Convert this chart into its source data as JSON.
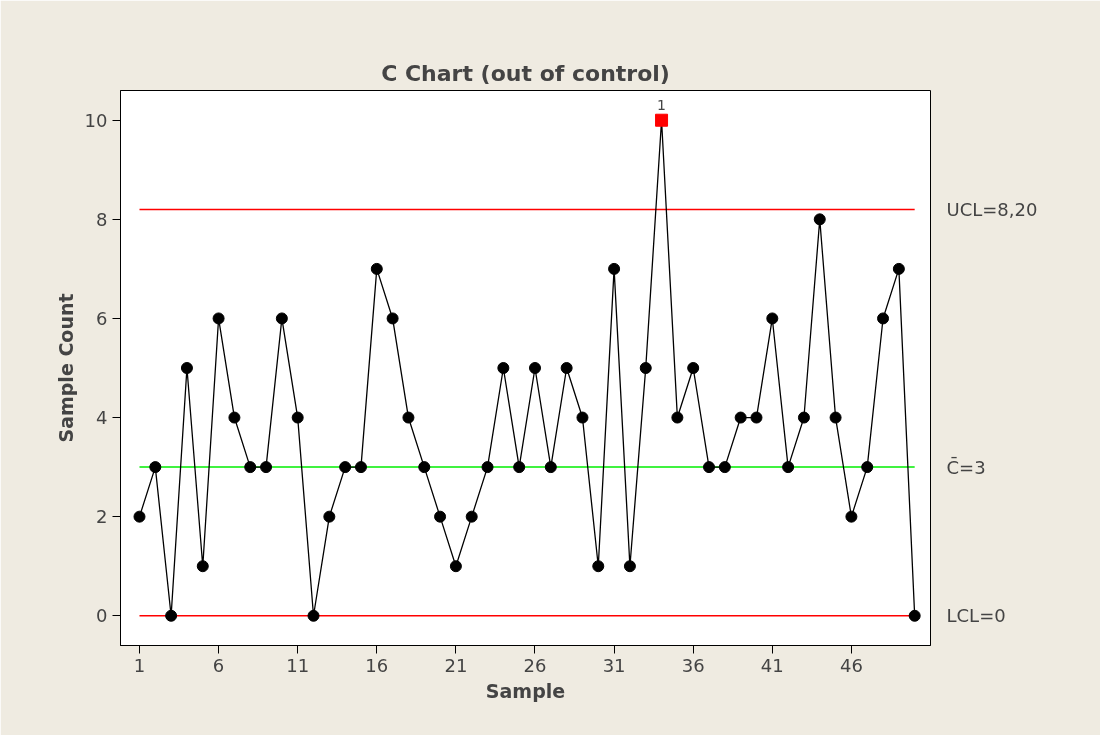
{
  "chart_data": {
    "type": "line",
    "title": "C Chart (out of control)",
    "xlabel": "Sample",
    "ylabel": "Sample Count",
    "xlim": [
      -0.2,
      51
    ],
    "ylim": [
      -0.6,
      10.6
    ],
    "xticks": [
      1,
      6,
      11,
      16,
      21,
      26,
      31,
      36,
      41,
      46
    ],
    "yticks": [
      0,
      2,
      4,
      6,
      8,
      10
    ],
    "grid": false,
    "series": [
      {
        "color": "#000000",
        "marker": "none",
        "x": [
          1,
          2,
          3,
          4,
          5,
          6,
          7,
          8,
          9,
          10,
          11,
          12,
          13,
          14,
          15,
          16,
          17,
          18,
          19,
          20,
          21,
          22,
          23,
          24,
          25,
          26,
          27,
          28,
          29,
          30,
          31,
          32,
          33,
          34,
          35,
          36,
          37,
          38,
          39,
          40,
          41,
          42,
          43,
          44,
          45,
          46,
          47,
          48,
          49,
          50
        ],
        "values": [
          2,
          3,
          0,
          5,
          1,
          6,
          4,
          3,
          3,
          6,
          4,
          0,
          2,
          3,
          3,
          7,
          6,
          4,
          3,
          2,
          1,
          2,
          3,
          5,
          3,
          5,
          3,
          5,
          4,
          1,
          7,
          1,
          5,
          10,
          4,
          5,
          3,
          3,
          4,
          4,
          6,
          3,
          4,
          8,
          4,
          2,
          3,
          6,
          7,
          0
        ]
      },
      {
        "type": "scatter",
        "color": "#000000",
        "marker": "circle",
        "x": [
          1,
          2,
          3,
          4,
          5,
          6,
          7,
          8,
          9,
          10,
          11,
          12,
          13,
          14,
          15,
          16,
          17,
          18,
          19,
          20,
          21,
          22,
          23,
          24,
          25,
          26,
          27,
          28,
          29,
          30,
          31,
          32,
          33,
          34,
          35,
          36,
          37,
          38,
          39,
          40,
          41,
          42,
          43,
          44,
          45,
          46,
          47,
          48,
          49,
          50
        ],
        "values": [
          2,
          3,
          0,
          5,
          1,
          6,
          4,
          3,
          3,
          6,
          4,
          0,
          2,
          3,
          3,
          7,
          6,
          4,
          3,
          2,
          1,
          2,
          3,
          5,
          3,
          5,
          3,
          5,
          4,
          1,
          7,
          1,
          5,
          null,
          4,
          5,
          3,
          3,
          4,
          4,
          6,
          3,
          4,
          8,
          4,
          2,
          3,
          6,
          7,
          0
        ]
      },
      {
        "type": "scatter",
        "color": "#ff0000",
        "marker": "square",
        "x": [
          34
        ],
        "values": [
          10
        ]
      }
    ],
    "ref_lines": [
      {
        "axis": "y",
        "value": 8.2,
        "label": "UCL=8,20",
        "color": "#ff0000"
      },
      {
        "axis": "y",
        "value": 3,
        "label": "C̄=3",
        "color": "#00ee00"
      },
      {
        "axis": "y",
        "value": 0,
        "label": "LCL=0",
        "color": "#ff0000"
      }
    ],
    "annotations": [
      {
        "text": "1",
        "x": 34,
        "y": 10
      }
    ]
  }
}
